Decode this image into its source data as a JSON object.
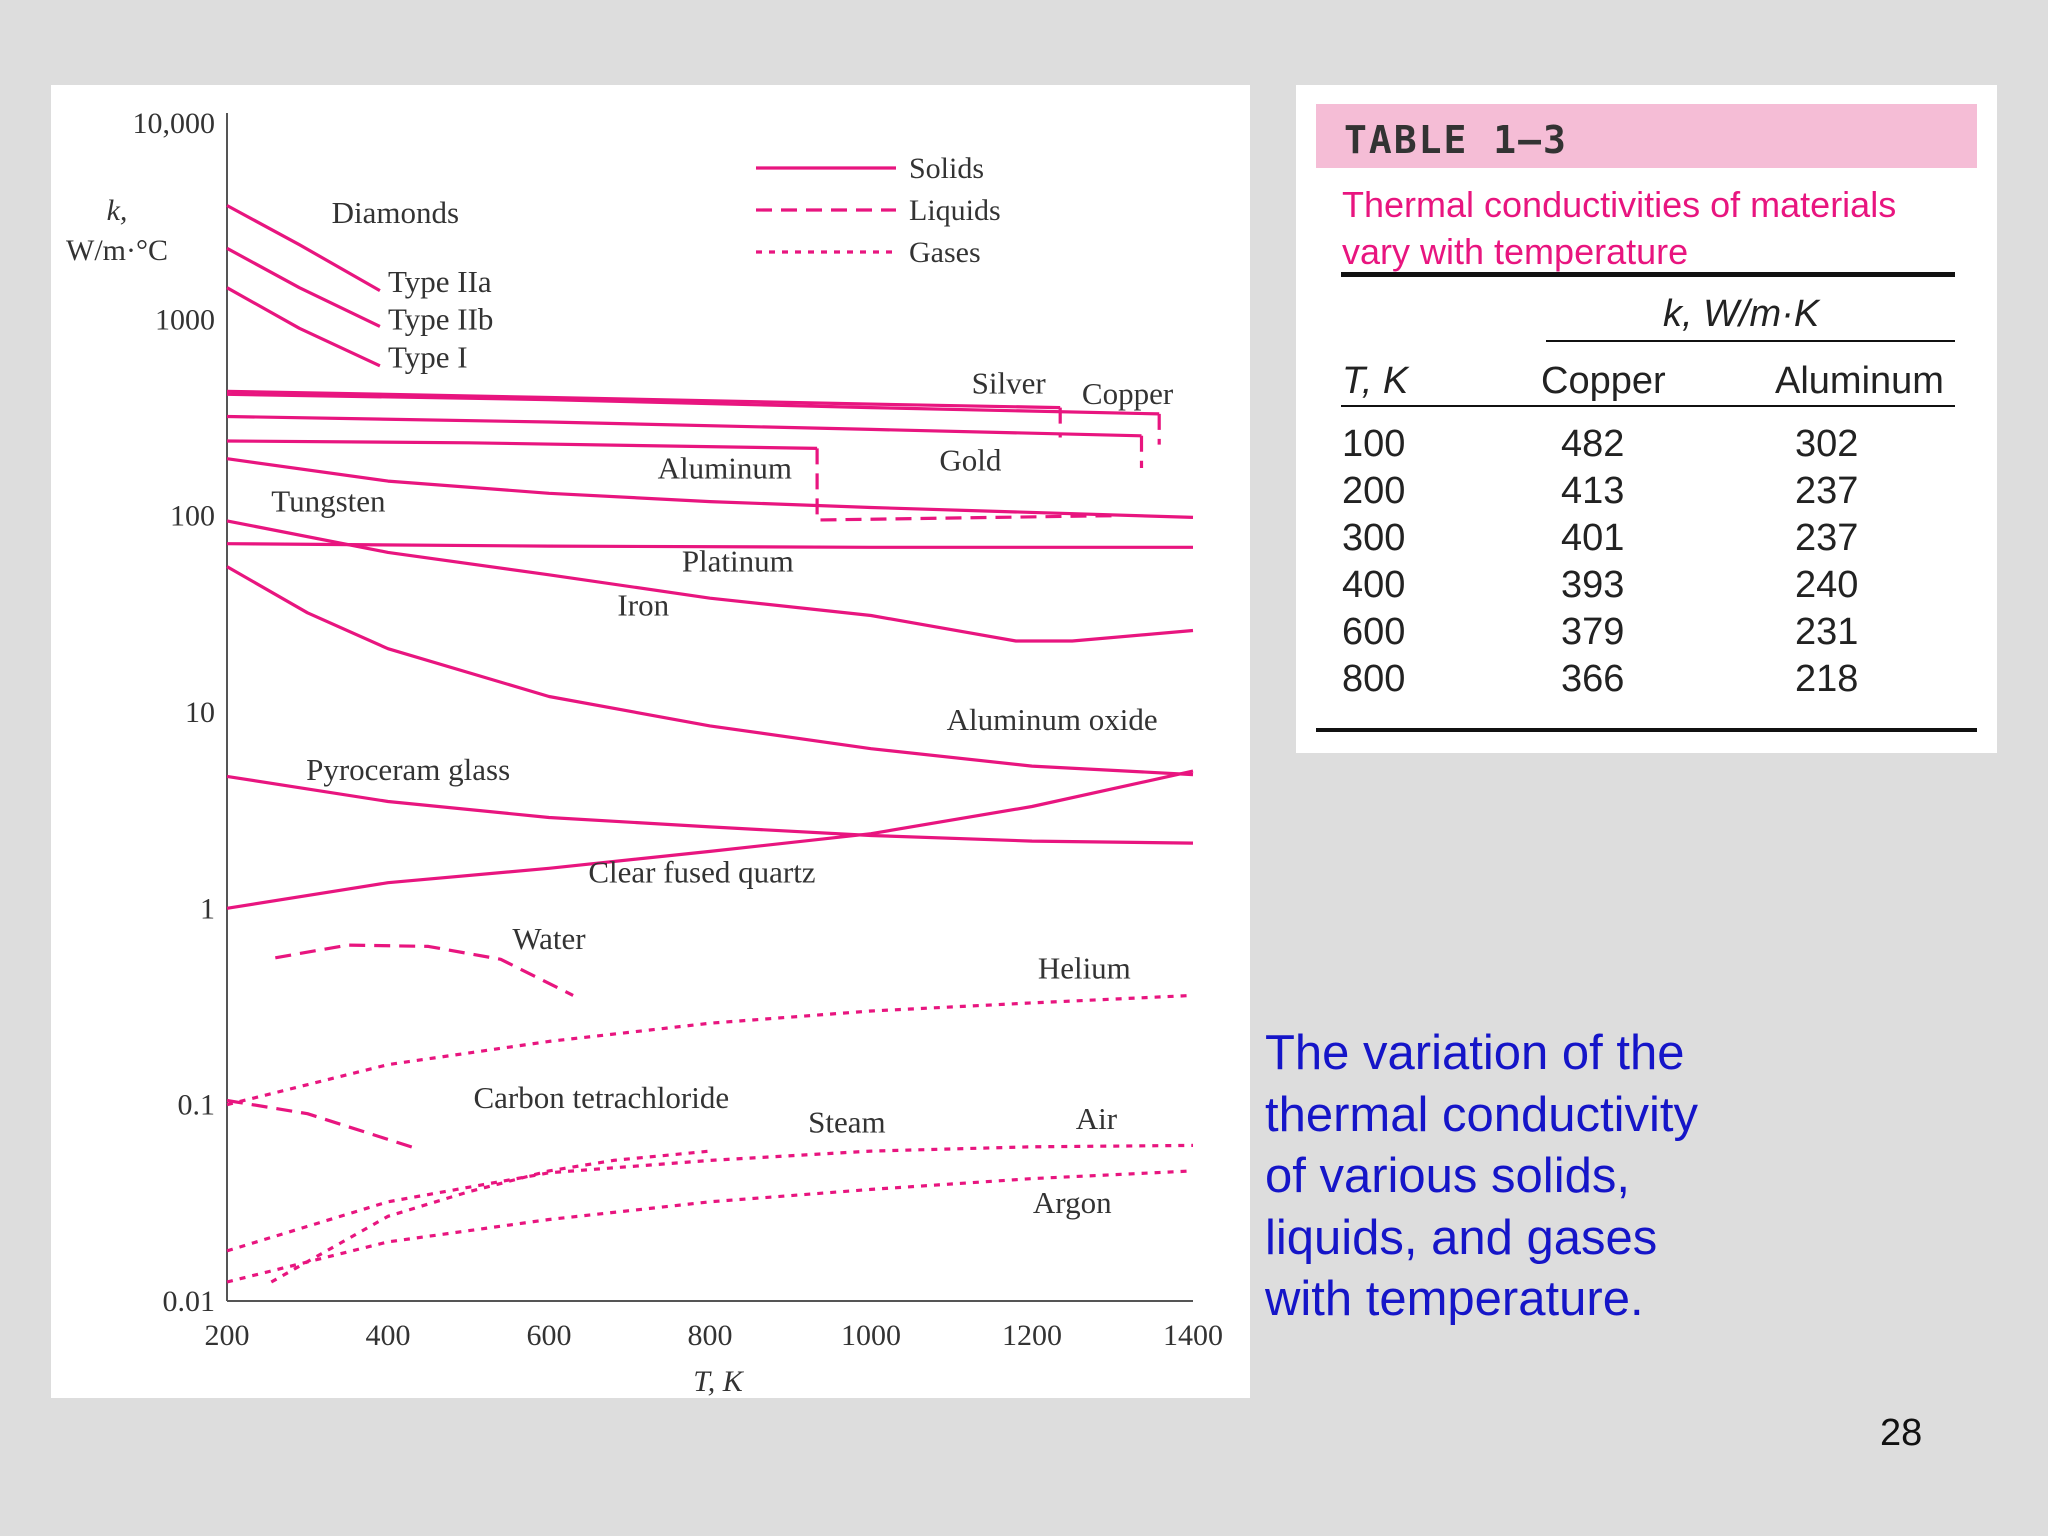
{
  "chart_data": {
    "type": "line",
    "scale": {
      "y": "log"
    },
    "ylabel_line1": "k,",
    "ylabel_line2": "W/m·°C",
    "xlabel": "T, K",
    "xlim": [
      200,
      1400
    ],
    "ylim": [
      0.01,
      10000
    ],
    "x_ticks": [
      "200",
      "400",
      "600",
      "800",
      "1000",
      "1200",
      "1400"
    ],
    "y_ticks": [
      {
        "v": 10000,
        "label": "10,000"
      },
      {
        "v": 1000,
        "label": "1000"
      },
      {
        "v": 100,
        "label": "100"
      },
      {
        "v": 10,
        "label": "10"
      },
      {
        "v": 1,
        "label": "1"
      },
      {
        "v": 0.1,
        "label": "0.1"
      },
      {
        "v": 0.01,
        "label": "0.01"
      }
    ],
    "color": "#e8157f",
    "legend_position": "top-right",
    "legend": [
      {
        "label": "Solids",
        "style": "solid"
      },
      {
        "label": "Liquids",
        "style": "dashed"
      },
      {
        "label": "Gases",
        "style": "dotted"
      }
    ],
    "series": [
      {
        "name": "Type IIa",
        "style": "solid",
        "label": "Type IIa",
        "points": [
          [
            200,
            3800
          ],
          [
            290,
            2400
          ],
          [
            390,
            1400
          ]
        ]
      },
      {
        "name": "Type IIb",
        "style": "solid",
        "label": "Type IIb",
        "points": [
          [
            200,
            2300
          ],
          [
            290,
            1450
          ],
          [
            390,
            920
          ]
        ]
      },
      {
        "name": "Type I",
        "style": "solid",
        "label": "Type I",
        "points": [
          [
            200,
            1450
          ],
          [
            290,
            900
          ],
          [
            390,
            580
          ]
        ]
      },
      {
        "name": "Silver",
        "style": "solid",
        "label": "Silver",
        "points": [
          [
            200,
            430
          ],
          [
            600,
            400
          ],
          [
            1000,
            370
          ],
          [
            1235,
            355
          ]
        ]
      },
      {
        "name": "Silver (liquid)",
        "style": "dashed",
        "points": [
          [
            1235,
            355
          ],
          [
            1235,
            250
          ]
        ]
      },
      {
        "name": "Copper",
        "style": "solid",
        "label": "Copper",
        "points": [
          [
            200,
            415
          ],
          [
            600,
            390
          ],
          [
            1000,
            355
          ],
          [
            1358,
            330
          ]
        ]
      },
      {
        "name": "Copper (liquid)",
        "style": "dashed",
        "points": [
          [
            1358,
            330
          ],
          [
            1358,
            230
          ]
        ]
      },
      {
        "name": "Gold",
        "style": "solid",
        "label": "Gold",
        "points": [
          [
            200,
            320
          ],
          [
            600,
            300
          ],
          [
            1000,
            275
          ],
          [
            1336,
            255
          ]
        ]
      },
      {
        "name": "Gold (liquid)",
        "style": "dashed",
        "points": [
          [
            1336,
            255
          ],
          [
            1336,
            175
          ]
        ]
      },
      {
        "name": "Aluminum",
        "style": "solid",
        "label": "Aluminum",
        "points": [
          [
            200,
            240
          ],
          [
            500,
            235
          ],
          [
            933,
            220
          ]
        ]
      },
      {
        "name": "Aluminum (liquid)",
        "style": "dashed",
        "points": [
          [
            933,
            220
          ],
          [
            933,
            95
          ],
          [
            1300,
            100
          ]
        ]
      },
      {
        "name": "Tungsten",
        "style": "solid",
        "label": "Tungsten",
        "points": [
          [
            200,
            195
          ],
          [
            400,
            150
          ],
          [
            600,
            130
          ],
          [
            800,
            118
          ],
          [
            1000,
            110
          ],
          [
            1400,
            98
          ]
        ]
      },
      {
        "name": "Platinum",
        "style": "solid",
        "label": "Platinum",
        "points": [
          [
            200,
            72
          ],
          [
            600,
            70
          ],
          [
            1000,
            69
          ],
          [
            1400,
            69
          ]
        ]
      },
      {
        "name": "Iron",
        "style": "solid",
        "label": "Iron",
        "points": [
          [
            200,
            94
          ],
          [
            400,
            65
          ],
          [
            600,
            50
          ],
          [
            800,
            38
          ],
          [
            1000,
            31
          ],
          [
            1180,
            23
          ],
          [
            1250,
            23
          ],
          [
            1400,
            26
          ]
        ]
      },
      {
        "name": "Aluminum oxide",
        "style": "solid",
        "label": "Aluminum oxide",
        "points": [
          [
            200,
            55
          ],
          [
            300,
            32
          ],
          [
            400,
            21
          ],
          [
            600,
            12
          ],
          [
            800,
            8.5
          ],
          [
            1000,
            6.5
          ],
          [
            1200,
            5.3
          ],
          [
            1400,
            4.8
          ]
        ]
      },
      {
        "name": "Pyroceram glass",
        "style": "solid",
        "label": "Pyroceram glass",
        "points": [
          [
            200,
            4.7
          ],
          [
            400,
            3.5
          ],
          [
            600,
            2.9
          ],
          [
            800,
            2.6
          ],
          [
            1000,
            2.35
          ],
          [
            1200,
            2.2
          ],
          [
            1400,
            2.15
          ]
        ]
      },
      {
        "name": "Clear fused quartz",
        "style": "solid",
        "label": "Clear fused quartz",
        "points": [
          [
            200,
            1.0
          ],
          [
            400,
            1.35
          ],
          [
            600,
            1.6
          ],
          [
            800,
            1.95
          ],
          [
            1000,
            2.4
          ],
          [
            1200,
            3.3
          ],
          [
            1400,
            5.0
          ]
        ]
      },
      {
        "name": "Water",
        "style": "dashed",
        "label": "Water",
        "points": [
          [
            260,
            0.56
          ],
          [
            350,
            0.65
          ],
          [
            450,
            0.64
          ],
          [
            540,
            0.55
          ],
          [
            630,
            0.36
          ]
        ]
      },
      {
        "name": "Carbon tetrachloride",
        "style": "dashed",
        "label": "Carbon tetrachloride",
        "points": [
          [
            200,
            0.105
          ],
          [
            300,
            0.09
          ],
          [
            440,
            0.059
          ]
        ]
      },
      {
        "name": "Helium",
        "style": "dotted",
        "label": "Helium",
        "points": [
          [
            200,
            0.1
          ],
          [
            400,
            0.16
          ],
          [
            600,
            0.21
          ],
          [
            800,
            0.26
          ],
          [
            1000,
            0.3
          ],
          [
            1200,
            0.33
          ],
          [
            1400,
            0.36
          ]
        ]
      },
      {
        "name": "Steam",
        "style": "dotted",
        "label": "Steam",
        "points": [
          [
            255,
            0.0125
          ],
          [
            400,
            0.027
          ],
          [
            500,
            0.036
          ],
          [
            600,
            0.046
          ],
          [
            680,
            0.052
          ],
          [
            800,
            0.058
          ]
        ]
      },
      {
        "name": "Air",
        "style": "dotted",
        "label": "Air",
        "points": [
          [
            200,
            0.018
          ],
          [
            400,
            0.032
          ],
          [
            600,
            0.045
          ],
          [
            800,
            0.052
          ],
          [
            1000,
            0.058
          ],
          [
            1200,
            0.061
          ],
          [
            1400,
            0.062
          ]
        ]
      },
      {
        "name": "Argon",
        "style": "dotted",
        "label": "Argon",
        "points": [
          [
            200,
            0.0125
          ],
          [
            400,
            0.02
          ],
          [
            600,
            0.026
          ],
          [
            800,
            0.032
          ],
          [
            1000,
            0.037
          ],
          [
            1200,
            0.042
          ],
          [
            1400,
            0.046
          ]
        ]
      }
    ],
    "curve_labels": [
      {
        "text": "Diamonds",
        "x": 330,
        "y": 3100,
        "anchor": "start"
      },
      {
        "text": "Type IIa",
        "x": 400,
        "y": 1380,
        "anchor": "start"
      },
      {
        "text": "Type IIb",
        "x": 400,
        "y": 890,
        "anchor": "start"
      },
      {
        "text": "Type I",
        "x": 400,
        "y": 570,
        "anchor": "start"
      },
      {
        "text": "Silver",
        "x": 1125,
        "y": 420,
        "anchor": "start"
      },
      {
        "text": "Copper",
        "x": 1262,
        "y": 370,
        "anchor": "start"
      },
      {
        "text": "Gold",
        "x": 1085,
        "y": 170,
        "anchor": "start"
      },
      {
        "text": "Aluminum",
        "x": 735,
        "y": 155,
        "anchor": "start"
      },
      {
        "text": "Tungsten",
        "x": 255,
        "y": 105,
        "anchor": "start"
      },
      {
        "text": "Platinum",
        "x": 765,
        "y": 52,
        "anchor": "start"
      },
      {
        "text": "Iron",
        "x": 685,
        "y": 31,
        "anchor": "start"
      },
      {
        "text": "Aluminum oxide",
        "x": 1225,
        "y": 8.1,
        "anchor": "middle"
      },
      {
        "text": "Pyroceram glass",
        "x": 425,
        "y": 4.5,
        "anchor": "middle"
      },
      {
        "text": "Clear fused quartz",
        "x": 790,
        "y": 1.35,
        "anchor": "middle"
      },
      {
        "text": "Water",
        "x": 600,
        "y": 0.62,
        "anchor": "middle"
      },
      {
        "text": "Helium",
        "x": 1265,
        "y": 0.44,
        "anchor": "middle"
      },
      {
        "text": "Carbon tetrachloride",
        "x": 665,
        "y": 0.096,
        "anchor": "middle"
      },
      {
        "text": "Steam",
        "x": 970,
        "y": 0.072,
        "anchor": "middle"
      },
      {
        "text": "Air",
        "x": 1280,
        "y": 0.075,
        "anchor": "middle"
      },
      {
        "text": "Argon",
        "x": 1250,
        "y": 0.028,
        "anchor": "middle"
      }
    ]
  },
  "table": {
    "id": "TABLE 1–3",
    "caption": "Thermal conductivities of materials vary with temperature",
    "group_header": "k, W/m·K",
    "columns": [
      "T, K",
      "Copper",
      "Aluminum"
    ],
    "rows": [
      [
        "100",
        "482",
        "302"
      ],
      [
        "200",
        "413",
        "237"
      ],
      [
        "300",
        "401",
        "237"
      ],
      [
        "400",
        "393",
        "240"
      ],
      [
        "600",
        "379",
        "231"
      ],
      [
        "800",
        "366",
        "218"
      ]
    ]
  },
  "caption": "The variation of the thermal conductivity of various solids, liquids, and gases with temperature.",
  "page_number": "28"
}
